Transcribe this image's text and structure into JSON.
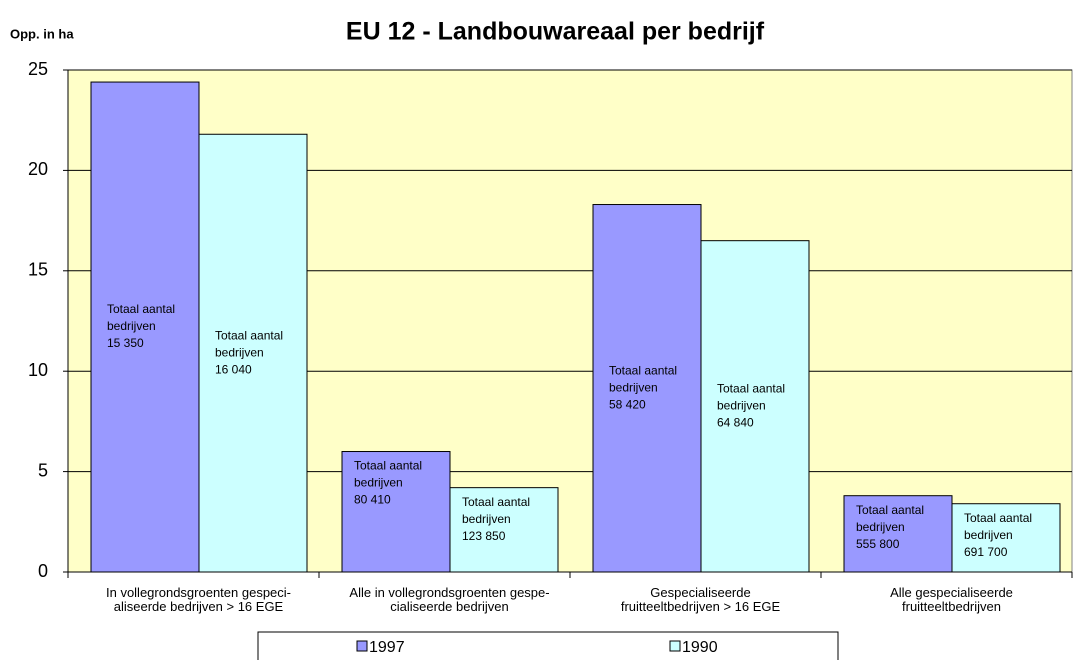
{
  "chart_data": {
    "type": "bar",
    "title": "EU 12 - Landbouwareaal per bedrijf",
    "y_label": "Opp. in ha",
    "categories": [
      "In vollegrondsgroenten gespeci-\naliseerde bedrijven > 16 EGE",
      "Alle in vollegrondsgroenten gespe-\ncialiseerde bedrijven",
      "Gespecialiseerde\nfruitteeltbedrijven > 16 EGE",
      "Alle gespecialiseerde\nfruitteeltbedrijven"
    ],
    "series": [
      {
        "name": "1997",
        "color": "#9999ff",
        "values": [
          24.4,
          6.0,
          18.3,
          3.8
        ],
        "bar_labels": [
          [
            "Totaal aantal",
            "bedrijven",
            "15 350"
          ],
          [
            "Totaal aantal",
            "bedrijven",
            "80 410"
          ],
          [
            "Totaal aantal",
            "bedrijven",
            "58 420"
          ],
          [
            "Totaal aantal",
            "bedrijven",
            "555 800"
          ]
        ]
      },
      {
        "name": "1990",
        "color": "#ccffff",
        "values": [
          21.8,
          4.2,
          16.5,
          3.4
        ],
        "bar_labels": [
          [
            "Totaal aantal",
            "bedrijven",
            "16 040"
          ],
          [
            "Totaal aantal",
            "bedrijven",
            "123 850"
          ],
          [
            "Totaal aantal",
            "bedrijven",
            "64 840"
          ],
          [
            "Totaal aantal",
            "bedrijven",
            "691 700"
          ]
        ]
      }
    ],
    "ylim": [
      0,
      25
    ],
    "yticks": [
      0,
      5,
      10,
      15,
      20,
      25
    ],
    "grid": true,
    "legend": "bottom",
    "background": "#ffffc8"
  }
}
